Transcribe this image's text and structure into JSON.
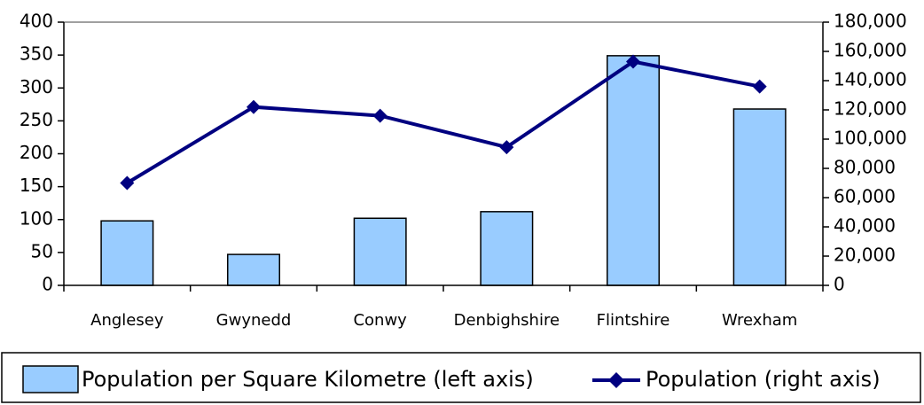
{
  "chart_data": {
    "type": "bar_line",
    "categories": [
      "Anglesey",
      "Gwynedd",
      "Conwy",
      "Denbighshire",
      "Flintshire",
      "Wrexham"
    ],
    "series": [
      {
        "name": "Population per Square Kilometre (left axis)",
        "type": "bar",
        "color": "#99ccff",
        "values": [
          98,
          47,
          102,
          112,
          349,
          268
        ]
      },
      {
        "name": "Population (right axis)",
        "type": "line",
        "axis": "y2",
        "color": "#000080",
        "values": [
          70000,
          122000,
          116000,
          94500,
          153000,
          136000
        ]
      }
    ],
    "ylim": [
      0,
      400
    ],
    "yticks": [
      0,
      50,
      100,
      150,
      200,
      250,
      300,
      350,
      400
    ],
    "y2lim": [
      0,
      180000
    ],
    "y2ticks": [
      0,
      {
        "value": 20000,
        "label": "20,000"
      },
      {
        "value": 40000,
        "label": "40,000"
      },
      {
        "value": 60000,
        "label": "60,000"
      },
      {
        "value": 80000,
        "label": "80,000"
      },
      {
        "value": 100000,
        "label": "100,000"
      },
      {
        "value": 120000,
        "label": "120,000"
      },
      {
        "value": 140000,
        "label": "140,000"
      },
      {
        "value": 160000,
        "label": "160,000"
      },
      {
        "value": 180000,
        "label": "180,000"
      }
    ],
    "legend": "bottom"
  }
}
